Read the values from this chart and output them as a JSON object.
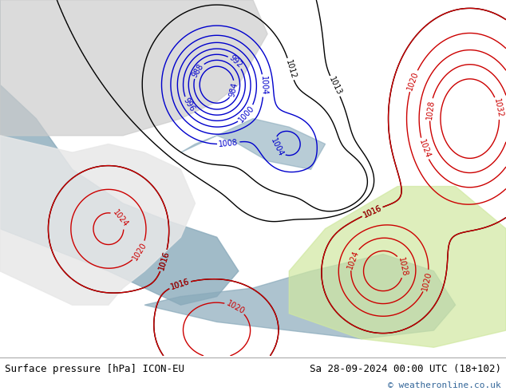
{
  "title_left": "Surface pressure [hPa] ICON-EU",
  "title_right": "Sa 28-09-2024 00:00 UTC (18+102)",
  "copyright": "© weatheronline.co.uk",
  "bg_color": "#ffffff",
  "map_bg": "#b8c8a0",
  "sea_color": "#8aaabb",
  "title_fontsize": 9,
  "copyright_fontsize": 8,
  "isobar_color_blue": "#0000cc",
  "isobar_color_black": "#000000",
  "isobar_color_red": "#cc0000",
  "label_fontsize": 7
}
